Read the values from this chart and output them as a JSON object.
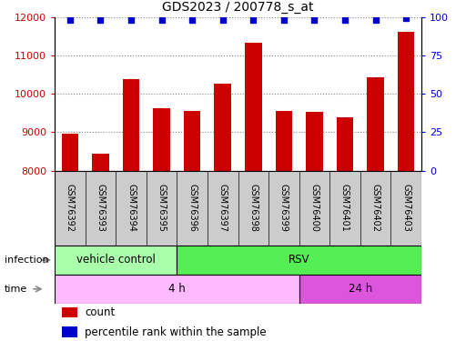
{
  "title": "GDS2023 / 200778_s_at",
  "samples": [
    "GSM76392",
    "GSM76393",
    "GSM76394",
    "GSM76395",
    "GSM76396",
    "GSM76397",
    "GSM76398",
    "GSM76399",
    "GSM76400",
    "GSM76401",
    "GSM76402",
    "GSM76403"
  ],
  "counts": [
    8950,
    8430,
    10380,
    9620,
    9560,
    10270,
    11320,
    9560,
    9530,
    9380,
    10430,
    11620
  ],
  "percentile_ranks": [
    98,
    98,
    98,
    98,
    98,
    98,
    98,
    98,
    98,
    98,
    98,
    99
  ],
  "ylim_left": [
    8000,
    12000
  ],
  "ylim_right": [
    0,
    100
  ],
  "yticks_left": [
    8000,
    9000,
    10000,
    11000,
    12000
  ],
  "yticks_right": [
    0,
    25,
    50,
    75,
    100
  ],
  "bar_color": "#cc0000",
  "dot_color": "#0000cc",
  "infection_labels": [
    {
      "label": "vehicle control",
      "start": 0,
      "end": 3,
      "color": "#aaffaa"
    },
    {
      "label": "RSV",
      "start": 4,
      "end": 11,
      "color": "#55ee55"
    }
  ],
  "time_labels": [
    {
      "label": "4 h",
      "start": 0,
      "end": 7,
      "color": "#ffbbff"
    },
    {
      "label": "24 h",
      "start": 8,
      "end": 11,
      "color": "#dd55dd"
    }
  ],
  "legend_count_label": "count",
  "legend_pct_label": "percentile rank within the sample",
  "infection_row_label": "infection",
  "time_row_label": "time",
  "background_color": "#ffffff",
  "grid_color": "#888888",
  "sample_bg_color": "#cccccc",
  "sample_border_color": "#999999"
}
